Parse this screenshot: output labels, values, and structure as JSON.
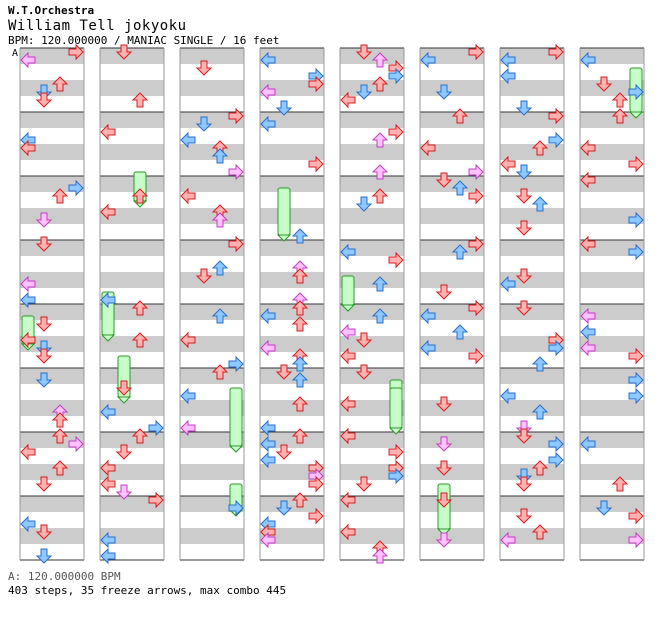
{
  "header": {
    "artist": "W.T.Orchestra",
    "title": "William Tell jokyoku",
    "info": "BPM: 120.000000 / MANIAC SINGLE / 16 feet",
    "segment_marker": "A"
  },
  "footer": {
    "bpm_line": "A: 120.000000 BPM",
    "stats": "403 steps, 35 freeze arrows, max combo 445"
  },
  "colors": {
    "band_gray": "#cccccc",
    "measure_line": "#333333",
    "red_fill": "#ffb0b0",
    "red_stroke": "#d02020",
    "blue_fill": "#8ec8ff",
    "blue_stroke": "#2a6fc8",
    "pink_fill": "#ffc0ff",
    "pink_stroke": "#c040c0",
    "freeze_fill": "#c8ffc8",
    "freeze_stroke": "#2a9a2a"
  },
  "chart_data": {
    "type": "step-chart",
    "columns": 8,
    "measures_per_column": 8,
    "lanes": [
      "left",
      "down",
      "up",
      "right"
    ],
    "stats": {
      "bpm": 120,
      "steps": 403,
      "freeze_arrows": 35,
      "max_combo": 445
    }
  }
}
